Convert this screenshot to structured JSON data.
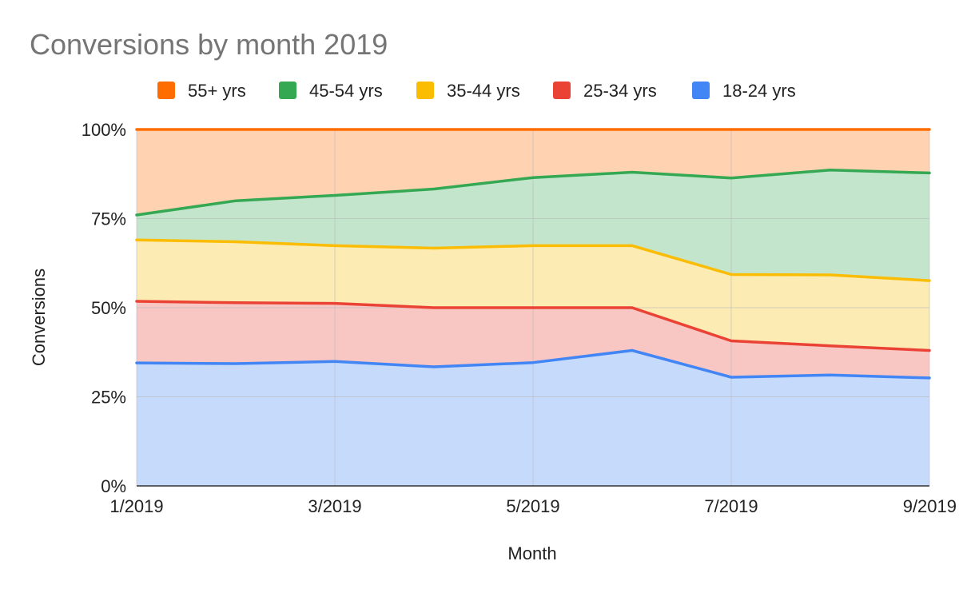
{
  "chart_data": {
    "type": "area",
    "stacked": "percent",
    "title": "Conversions by month 2019",
    "xlabel": "Month",
    "ylabel": "Conversions",
    "ylim": [
      0,
      100
    ],
    "y_ticks": [
      0,
      25,
      50,
      75,
      100
    ],
    "y_tick_labels": [
      "0%",
      "25%",
      "50%",
      "75%",
      "100%"
    ],
    "x": [
      "1/2019",
      "2/2019",
      "3/2019",
      "4/2019",
      "5/2019",
      "6/2019",
      "7/2019",
      "8/2019",
      "9/2019"
    ],
    "x_tick_labels": [
      "1/2019",
      "3/2019",
      "5/2019",
      "7/2019",
      "9/2019"
    ],
    "legend_position": "top",
    "legend": [
      "55+ yrs",
      "45-54 yrs",
      "35-44 yrs",
      "25-34 yrs",
      "18-24 yrs"
    ],
    "series": [
      {
        "name": "18-24 yrs",
        "color": "#4285F4",
        "fill": "#C6DAFC",
        "values": [
          34.5,
          34.3,
          34.9,
          33.4,
          34.6,
          38.0,
          30.5,
          31.1,
          30.3
        ]
      },
      {
        "name": "25-34 yrs",
        "color": "#EA4335",
        "fill": "#F8C7C3",
        "values": [
          17.3,
          17.1,
          16.3,
          16.6,
          15.4,
          12.0,
          10.2,
          8.2,
          7.7
        ]
      },
      {
        "name": "35-44 yrs",
        "color": "#FBBC04",
        "fill": "#FDEBB4",
        "values": [
          17.2,
          17.1,
          16.2,
          16.7,
          17.4,
          17.4,
          18.6,
          19.9,
          19.6
        ]
      },
      {
        "name": "45-54 yrs",
        "color": "#34A853",
        "fill": "#C2E5CB",
        "values": [
          7.0,
          11.5,
          14.1,
          16.6,
          19.1,
          20.6,
          27.1,
          29.4,
          30.2
        ]
      },
      {
        "name": "55+ yrs",
        "color": "#FF6D01",
        "fill": "#FFD3B2",
        "values": [
          24.0,
          20.0,
          18.5,
          16.7,
          13.5,
          12.0,
          13.6,
          11.4,
          12.2
        ]
      }
    ]
  }
}
